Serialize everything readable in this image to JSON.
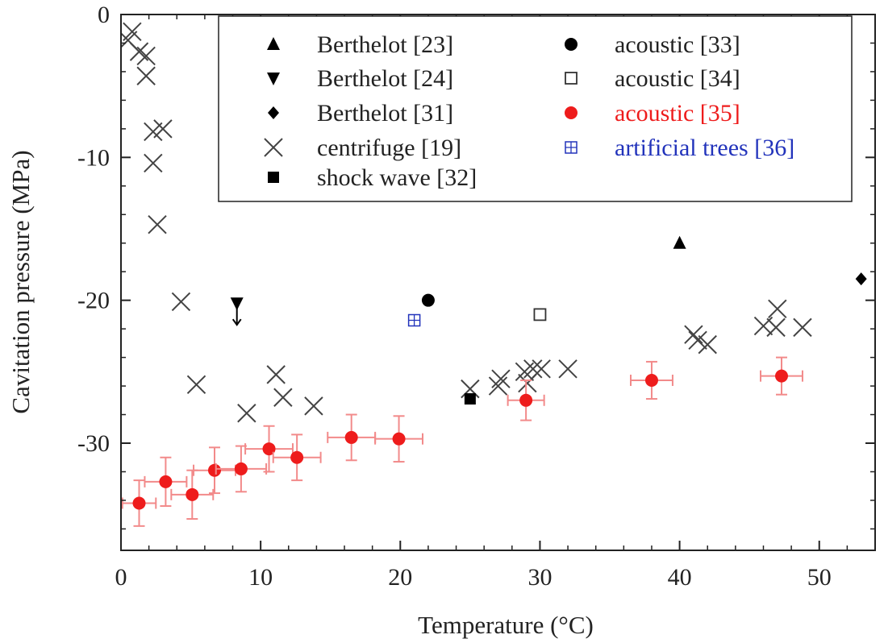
{
  "chart_data": {
    "type": "scatter",
    "xlabel": "Temperature (°C)",
    "ylabel": "Cavitation pressure (MPa)",
    "xlim": [
      0,
      54
    ],
    "ylim": [
      -37.5,
      0
    ],
    "x_ticks": [
      0,
      10,
      20,
      30,
      40,
      50
    ],
    "y_ticks": [
      0,
      -10,
      -20,
      -30
    ],
    "grid": false,
    "legend_position": "top-right",
    "series": [
      {
        "name": "Berthelot [23]",
        "marker": "triangle-up",
        "color": "#000000",
        "points": [
          {
            "x": 40,
            "y": -16
          }
        ]
      },
      {
        "name": "Berthelot [24]",
        "marker": "triangle-down",
        "color": "#000000",
        "arrow_down": true,
        "points": [
          {
            "x": 8.3,
            "y": -20.2
          }
        ]
      },
      {
        "name": "Berthelot [31]",
        "marker": "diamond",
        "color": "#000000",
        "points": [
          {
            "x": 53,
            "y": -18.5
          }
        ]
      },
      {
        "name": "centrifuge [19]",
        "marker": "x",
        "color": "#444444",
        "points": [
          {
            "x": 0.5,
            "y": -1.8
          },
          {
            "x": 0.8,
            "y": -1.2
          },
          {
            "x": 1.3,
            "y": -2.6
          },
          {
            "x": 1.8,
            "y": -2.9
          },
          {
            "x": 1.8,
            "y": -4.3
          },
          {
            "x": 2.3,
            "y": -8.2
          },
          {
            "x": 3.0,
            "y": -8.0
          },
          {
            "x": 2.3,
            "y": -10.4
          },
          {
            "x": 2.6,
            "y": -14.7
          },
          {
            "x": 4.3,
            "y": -20.1
          },
          {
            "x": 5.4,
            "y": -25.9
          },
          {
            "x": 9.0,
            "y": -27.9
          },
          {
            "x": 11.1,
            "y": -25.2
          },
          {
            "x": 11.6,
            "y": -26.8
          },
          {
            "x": 13.8,
            "y": -27.4
          },
          {
            "x": 25.0,
            "y": -26.2
          },
          {
            "x": 27.0,
            "y": -26.0
          },
          {
            "x": 27.2,
            "y": -25.5
          },
          {
            "x": 28.9,
            "y": -25.0
          },
          {
            "x": 29.1,
            "y": -25.8
          },
          {
            "x": 29.5,
            "y": -24.8
          },
          {
            "x": 30.1,
            "y": -24.8
          },
          {
            "x": 32.0,
            "y": -24.8
          },
          {
            "x": 41.0,
            "y": -22.4
          },
          {
            "x": 41.3,
            "y": -22.8
          },
          {
            "x": 42.0,
            "y": -23.1
          },
          {
            "x": 46.0,
            "y": -21.8
          },
          {
            "x": 46.9,
            "y": -21.9
          },
          {
            "x": 47.0,
            "y": -20.6
          },
          {
            "x": 48.8,
            "y": -21.9
          }
        ]
      },
      {
        "name": "shock wave [32]",
        "marker": "square",
        "color": "#000000",
        "points": [
          {
            "x": 25,
            "y": -26.9
          }
        ]
      },
      {
        "name": "acoustic [33]",
        "marker": "circle",
        "color": "#000000",
        "points": [
          {
            "x": 22,
            "y": -20
          }
        ]
      },
      {
        "name": "acoustic [34]",
        "marker": "square-open",
        "color": "#333333",
        "points": [
          {
            "x": 30,
            "y": -21
          }
        ]
      },
      {
        "name": "acoustic [35]",
        "marker": "circle",
        "color": "#ee1c1c",
        "error_color": "#f28a8a",
        "points": [
          {
            "x": 1.3,
            "y": -34.2,
            "xerr": 1.2,
            "yerr": 1.6
          },
          {
            "x": 3.2,
            "y": -32.7,
            "xerr": 1.5,
            "yerr": 1.7
          },
          {
            "x": 5.1,
            "y": -33.6,
            "xerr": 1.5,
            "yerr": 1.7
          },
          {
            "x": 6.7,
            "y": -31.9,
            "xerr": 1.5,
            "yerr": 1.6
          },
          {
            "x": 8.6,
            "y": -31.8,
            "xerr": 1.8,
            "yerr": 1.6
          },
          {
            "x": 10.6,
            "y": -30.4,
            "xerr": 1.7,
            "yerr": 1.6
          },
          {
            "x": 12.6,
            "y": -31.0,
            "xerr": 1.7,
            "yerr": 1.6
          },
          {
            "x": 16.5,
            "y": -29.6,
            "xerr": 1.7,
            "yerr": 1.6
          },
          {
            "x": 19.9,
            "y": -29.7,
            "xerr": 1.7,
            "yerr": 1.6
          },
          {
            "x": 29.0,
            "y": -27.0,
            "xerr": 1.3,
            "yerr": 1.4
          },
          {
            "x": 38.0,
            "y": -25.6,
            "xerr": 1.5,
            "yerr": 1.3
          },
          {
            "x": 47.3,
            "y": -25.3,
            "xerr": 1.5,
            "yerr": 1.3
          }
        ]
      },
      {
        "name": "artificial trees [36]",
        "marker": "square-plus",
        "color": "#2233bb",
        "points": [
          {
            "x": 21,
            "y": -21.4
          }
        ]
      }
    ],
    "legend": [
      {
        "label": "Berthelot [23]",
        "marker": "triangle-up",
        "color": "#000000",
        "text_color": "#222222"
      },
      {
        "label": "Berthelot [24]",
        "marker": "triangle-down",
        "color": "#000000",
        "text_color": "#222222"
      },
      {
        "label": "Berthelot [31]",
        "marker": "diamond",
        "color": "#000000",
        "text_color": "#222222"
      },
      {
        "label": "centrifuge [19]",
        "marker": "x",
        "color": "#444444",
        "text_color": "#222222"
      },
      {
        "label": "shock wave [32]",
        "marker": "square",
        "color": "#000000",
        "text_color": "#222222"
      },
      {
        "label": "acoustic [33]",
        "marker": "circle",
        "color": "#000000",
        "text_color": "#222222"
      },
      {
        "label": "acoustic [34]",
        "marker": "square-open",
        "color": "#333333",
        "text_color": "#222222"
      },
      {
        "label": "acoustic [35]",
        "marker": "circle",
        "color": "#ee1c1c",
        "text_color": "#ee1c1c"
      },
      {
        "label": "artificial trees [36]",
        "marker": "square-plus",
        "color": "#2233bb",
        "text_color": "#2233bb"
      }
    ]
  }
}
